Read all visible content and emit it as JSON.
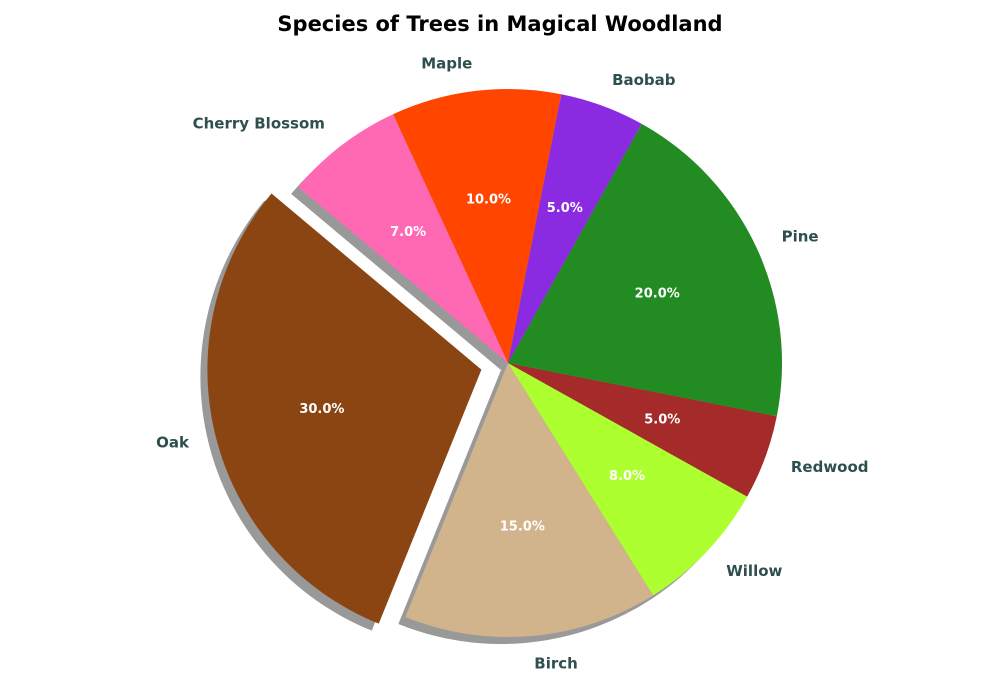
{
  "chart_data": {
    "type": "pie",
    "title": "Species of Trees in Magical Woodland",
    "start_angle_deg": 140,
    "direction": "counterclockwise",
    "shadow": true,
    "exploded": [
      "Oak"
    ],
    "slices": [
      {
        "label": "Oak",
        "value": 30,
        "pct_label": "30.0%",
        "color": "#8b4513"
      },
      {
        "label": "Birch",
        "value": 15,
        "pct_label": "15.0%",
        "color": "#d2b48c"
      },
      {
        "label": "Willow",
        "value": 8,
        "pct_label": "8.0%",
        "color": "#adff2f"
      },
      {
        "label": "Redwood",
        "value": 5,
        "pct_label": "5.0%",
        "color": "#a52a2a"
      },
      {
        "label": "Pine",
        "value": 20,
        "pct_label": "20.0%",
        "color": "#228b22"
      },
      {
        "label": "Baobab",
        "value": 5,
        "pct_label": "5.0%",
        "color": "#8a2be2"
      },
      {
        "label": "Maple",
        "value": 10,
        "pct_label": "10.0%",
        "color": "#ff4500"
      },
      {
        "label": "Cherry Blossom",
        "value": 7,
        "pct_label": "7.0%",
        "color": "#ff69b4"
      }
    ]
  }
}
